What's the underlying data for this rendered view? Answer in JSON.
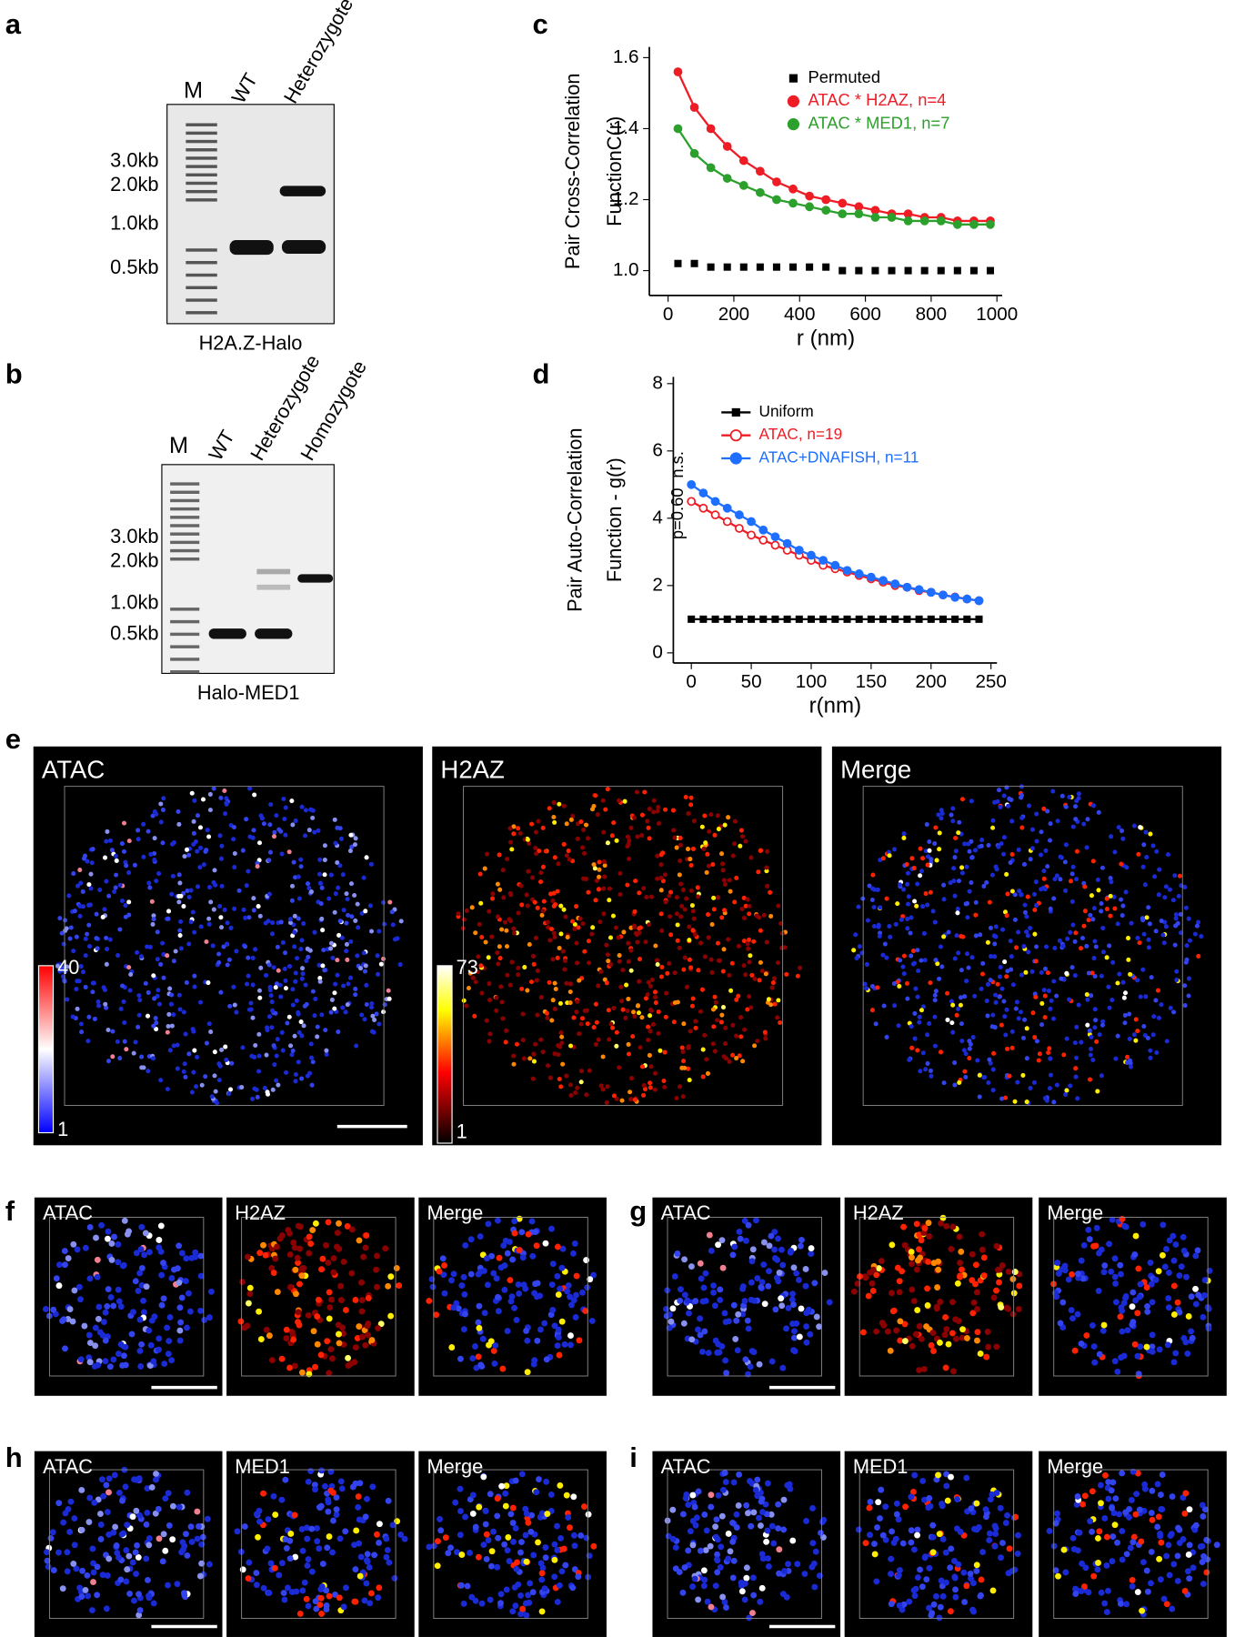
{
  "figure": {
    "panel_labels": [
      "a",
      "b",
      "c",
      "d",
      "e",
      "f",
      "g",
      "h",
      "i"
    ],
    "gel_a": {
      "lanes": [
        "M",
        "WT",
        "Heterozygote"
      ],
      "sizes": [
        "3.0kb",
        "2.0kb",
        "1.0kb",
        "0.5kb"
      ],
      "caption": "H2A.Z-Halo"
    },
    "gel_b": {
      "lanes": [
        "M",
        "WT",
        "Heterozygote",
        "Homozygote"
      ],
      "sizes": [
        "3.0kb",
        "2.0kb",
        "1.0kb",
        "0.5kb"
      ],
      "caption": "Halo-MED1"
    },
    "panel_e": {
      "titles": [
        "ATAC",
        "H2AZ",
        "Merge"
      ],
      "colorbar_atac": [
        "40",
        "1"
      ],
      "colorbar_h2az": [
        "73",
        "1"
      ]
    },
    "panel_f": {
      "titles": [
        "ATAC",
        "H2AZ",
        "Merge"
      ]
    },
    "panel_g": {
      "titles": [
        "ATAC",
        "H2AZ",
        "Merge"
      ]
    },
    "panel_h": {
      "titles": [
        "ATAC",
        "MED1",
        "Merge"
      ]
    },
    "panel_i": {
      "titles": [
        "ATAC",
        "MED1",
        "Merge"
      ]
    }
  },
  "chart_data": [
    {
      "type": "line",
      "y_label": [
        "Pair Cross-Correlation",
        "FunctionC(r)"
      ],
      "x_label": "r (nm)",
      "x": [
        30,
        80,
        130,
        180,
        230,
        280,
        330,
        380,
        430,
        480,
        530,
        580,
        630,
        680,
        730,
        780,
        830,
        880,
        930,
        980
      ],
      "series": [
        {
          "name": "Permuted",
          "color": "#000000",
          "marker": "square",
          "values": [
            1.02,
            1.02,
            1.01,
            1.01,
            1.01,
            1.01,
            1.01,
            1.01,
            1.01,
            1.01,
            1.0,
            1.0,
            1.0,
            1.0,
            1.0,
            1.0,
            1.0,
            1.0,
            1.0,
            1.0
          ]
        },
        {
          "name": "ATAC * H2AZ, n=4",
          "color": "#ee1c25",
          "marker": "circle",
          "values": [
            1.56,
            1.46,
            1.4,
            1.35,
            1.31,
            1.28,
            1.25,
            1.23,
            1.21,
            1.2,
            1.19,
            1.18,
            1.17,
            1.16,
            1.16,
            1.15,
            1.15,
            1.14,
            1.14,
            1.14
          ]
        },
        {
          "name": "ATAC * MED1, n=7",
          "color": "#2ca02c",
          "marker": "circle",
          "values": [
            1.4,
            1.33,
            1.29,
            1.26,
            1.24,
            1.22,
            1.2,
            1.19,
            1.18,
            1.17,
            1.16,
            1.16,
            1.15,
            1.15,
            1.14,
            1.14,
            1.14,
            1.13,
            1.13,
            1.13
          ]
        }
      ],
      "xlim": [
        -57,
        1016
      ],
      "ylim": [
        0.93,
        1.63
      ],
      "xticks": [
        0,
        200,
        400,
        600,
        800,
        1000
      ],
      "yticks": [
        {
          "value": 1,
          "label": "1.0"
        },
        1.2,
        1.4,
        1.6
      ]
    },
    {
      "type": "line",
      "y_label": [
        "Pair Auto-Correlation",
        "Function - g(r)"
      ],
      "x_label": "r(nm)",
      "annotations": [
        "p=0.60",
        "n.s."
      ],
      "x": [
        0,
        10,
        20,
        30,
        40,
        50,
        60,
        70,
        80,
        90,
        100,
        110,
        120,
        130,
        140,
        150,
        160,
        170,
        180,
        190,
        200,
        210,
        220,
        230,
        240
      ],
      "series": [
        {
          "name": "Uniform",
          "color": "#000000",
          "marker": "square",
          "values": [
            1,
            1,
            1,
            1,
            1,
            1,
            1,
            1,
            1,
            1,
            1,
            1,
            1,
            1,
            1,
            1,
            1,
            1,
            1,
            1,
            1,
            1,
            1,
            1,
            1
          ]
        },
        {
          "name": "ATAC, n=19",
          "color": "#ee1c25",
          "marker": "open-circle",
          "values": [
            4.5,
            4.3,
            4.1,
            3.9,
            3.7,
            3.5,
            3.35,
            3.2,
            3.05,
            2.9,
            2.75,
            2.6,
            2.5,
            2.4,
            2.3,
            2.2,
            2.1,
            2.0,
            1.95,
            1.85,
            1.8,
            1.72,
            1.66,
            1.6,
            1.55
          ]
        },
        {
          "name": "ATAC+DNAFISH, n=11",
          "color": "#1e6fff",
          "marker": "circle",
          "values": [
            5.0,
            4.75,
            4.5,
            4.3,
            4.1,
            3.9,
            3.65,
            3.45,
            3.25,
            3.05,
            2.9,
            2.75,
            2.6,
            2.45,
            2.35,
            2.25,
            2.15,
            2.05,
            1.95,
            1.88,
            1.8,
            1.72,
            1.65,
            1.6,
            1.55
          ]
        }
      ],
      "xlim": [
        -15,
        255
      ],
      "ylim": [
        -0.3,
        8.2
      ],
      "xticks": [
        0,
        50,
        100,
        150,
        200,
        250
      ],
      "yticks": [
        0,
        2,
        4,
        6,
        8
      ]
    }
  ]
}
